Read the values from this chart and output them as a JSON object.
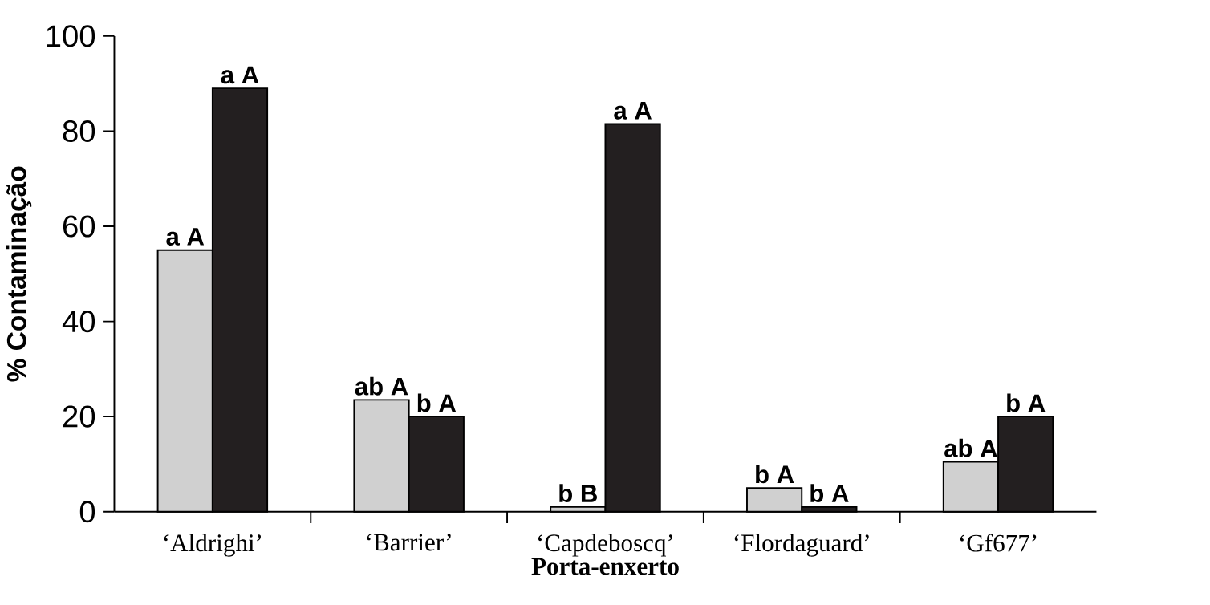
{
  "chart_data": {
    "type": "bar",
    "xlabel": "Porta-enxerto",
    "ylabel": "% Contaminação",
    "categories": [
      "‘Aldrighi’",
      "‘Barrier’",
      "‘Capdeboscq’",
      "‘Flordaguard’",
      "‘Gf677’"
    ],
    "series": [
      {
        "color": "#d0d0d0",
        "values": [
          55,
          23.5,
          1,
          5,
          10.5
        ],
        "value_labels": [
          "a A",
          "ab A",
          "b B",
          "b A",
          "ab A"
        ]
      },
      {
        "color": "#231f20",
        "values": [
          89,
          20,
          81.5,
          1,
          20
        ],
        "value_labels": [
          "a A",
          "b A",
          "a A",
          "b A",
          "b A"
        ]
      }
    ],
    "ylim": [
      0,
      100
    ],
    "yticks": [
      0,
      20,
      40,
      60,
      80,
      100
    ]
  }
}
